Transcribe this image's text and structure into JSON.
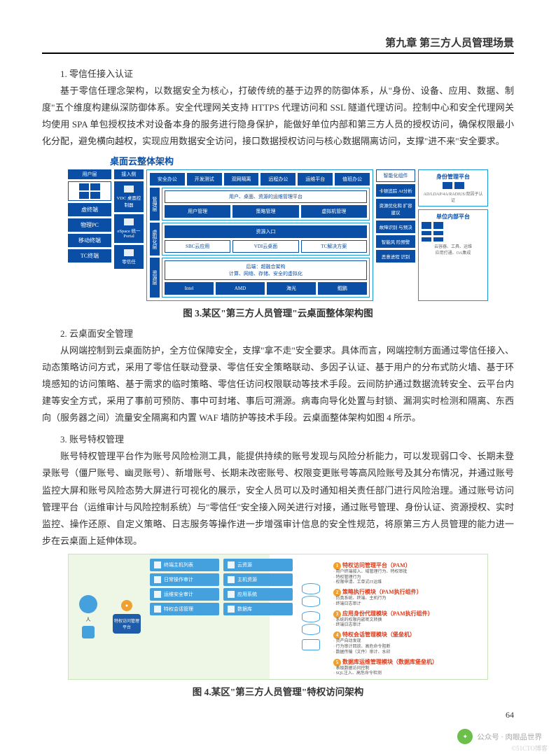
{
  "chapter_header": "第九章 第三方人员管理场景",
  "section1_heading": "1. 零信任接入认证",
  "para1": "基于零信任理念架构，以数据安全为核心，打破传统的基于边界的防御体系，从\"身份、设备、应用、数据、制度\"五个维度构建纵深防御体系。安全代理网关支持 HTTPS 代理访问和 SSL 隧道代理访问。控制中心和安全代理网关均使用 SPA 单包授权技术对设备本身的服务进行隐身保护，能做好单位内部和第三方人员的授权访问，确保权限最小化分配，避免横向越权，实现应用数据安全访问，接口数据授权访问与核心数据隔离访问，支撑\"进不来\"安全要求。",
  "diagram1": {
    "title": "桌面云整体架构",
    "left_col_header": "用户层",
    "left_boxes": [
      "虚终端",
      "物理PC",
      "移动终端",
      "TC终端"
    ],
    "access_header": "接入侧",
    "access_items": [
      {
        "label": "VDC\n桌面控制器"
      },
      {
        "label": "eSpace\n统一Portal"
      },
      {
        "label": "零信任"
      }
    ],
    "center_top_row": [
      "安全办公",
      "开发测试",
      "双网隔离",
      "远程办公",
      "运维平台",
      "值班办公"
    ],
    "mgmt_label": "管理层",
    "mgmt_banner": "用户、桌面、资源的运维管理平台",
    "mgmt_row": [
      "用户管理",
      "策略管理",
      "虚拟机管理"
    ],
    "virt_label": "虚拟化层",
    "virt_banner": "资源入口",
    "virt_row": [
      "SBC云应用",
      "VDI云桌面",
      "TC解决方案"
    ],
    "res_label": "资源层",
    "res_banner": "后端：超融合架构\n计算、网络、存储、安全的虚拟化",
    "res_row": [
      "Intel",
      "AMD",
      "海光",
      "鲲鹏"
    ],
    "ai_label": "智能化组件",
    "ai_boxes": [
      "卡顿追踪\nAI分析",
      "资源优化和\n扩容建议",
      "故障识别\n与预决",
      "智能风\n险预警",
      "恶意进程\n识别"
    ],
    "right_card1_title": "身份管理平台",
    "right_card1_sub": "AD/LDAP/4A/RADIUS/双因子认证",
    "right_card2_title": "单位内部平台",
    "right_card2_sub": "云容器、工具、运维\n应用打通、OA集成",
    "colors": {
      "primary": "#0a4fa5",
      "border": "#199ad6"
    }
  },
  "figure1_caption": "图 3.某区\"第三方人员管理\"云桌面整体架构图",
  "section2_heading": "2. 云桌面安全管理",
  "para2": "从网端控制到云桌面防护，全方位保障安全，支撑\"拿不走\"安全要求。具体而言，网端控制方面通过零信任接入、动态策略访问方式，采用了零信任联动登录、零信任安全策略联动、多因子认证、基于用户的分布式防火墙、基于环境感知的访问策略、基于需求的临时策略、零信任访问权限联动等技术手段。云间防护通过数据流转安全、云平台内建等安全方式，采用了事前可预防、事中可封堵、事后可溯源。病毒向导化处置与封锁、漏洞实时检测和隔离、东西向（服务器之间）流量安全隔离和内置 WAF 墙防护等技术手段。云桌面整体架构如图 4 所示。",
  "section3_heading": "3. 账号特权管理",
  "para3": "账号特权管理平台作为账号风险检测工具，能提供持续的账号发现与风险分析能力，可以发现弱口令、长期未登录账号（僵尸账号、幽灵账号）、新增账号、长期未改密账号、权限变更账号等高风险账号及其分布情况，并通过账号监控大屏和账号风险态势大屏进行可视化的展示，安全人员可以及时通知相关责任部门进行风险治理。通过账号访问管理平台（运维审计与风险控制系统）与\"零信任\"安全接入网关进行对接，通过账号管理、身份认证、资源授权、实时监控、操作还原、自定义策略、日志服务等操作进一步增强审计信息的安全性规范，将原第三方人员管理的能力进一步在云桌面上延伸体现。",
  "diagram2": {
    "zone_person": "人",
    "hub_label": "特权访问管理平台",
    "boxes_col1": [
      "终端主机列表",
      "日常操作审计",
      "运维安全审计",
      "特权会话管理"
    ],
    "boxes_col2": [
      "云资源",
      "主机资源",
      "应用系统",
      "数据库"
    ],
    "right_items": [
      {
        "n": "1",
        "title": "特权访问管理平台（PAM）",
        "subs": [
          "用户终端接入、域管理行为、特权审批",
          "特权管理行为",
          "权限申请、工单式IT运维"
        ]
      },
      {
        "n": "2",
        "title": "策略执行模块（PAM执行组件）",
        "subs": [
          "仿真系统、终端、主机行为",
          "终端日志审计"
        ]
      },
      {
        "n": "3",
        "title": "应用身份代理模块（PAM执行组件）",
        "subs": [
          "系统的权限内嵌密文转换",
          "终端日志审计"
        ]
      },
      {
        "n": "4",
        "title": "特权会话管理模块（堡垒机）",
        "subs": [
          "资产自动发现",
          "行为审计回放、高危命令阻断",
          "数据传输（文件）审计、水印"
        ]
      },
      {
        "n": "5",
        "title": "数据库运维管理模块（数据库堡垒机）",
        "subs": [
          "表级数据访问控制",
          "SQL注入、高危命令检测",
          "数据脱敏、下载防扩散",
          "数据水印溯源",
          "数据漂白防泄露"
        ]
      }
    ],
    "colors": {
      "bg_left": "#eef6e5",
      "box": "#45a0de",
      "title": "#d93a1a",
      "num_bg": "#f0a030"
    }
  },
  "figure2_caption": "图 4.某区\"第三方人员管理\"特权访问架构",
  "page_number": "64",
  "footer_brand": "公众号 · 肉眼品世界",
  "footer_sub": "©51CTO博客"
}
